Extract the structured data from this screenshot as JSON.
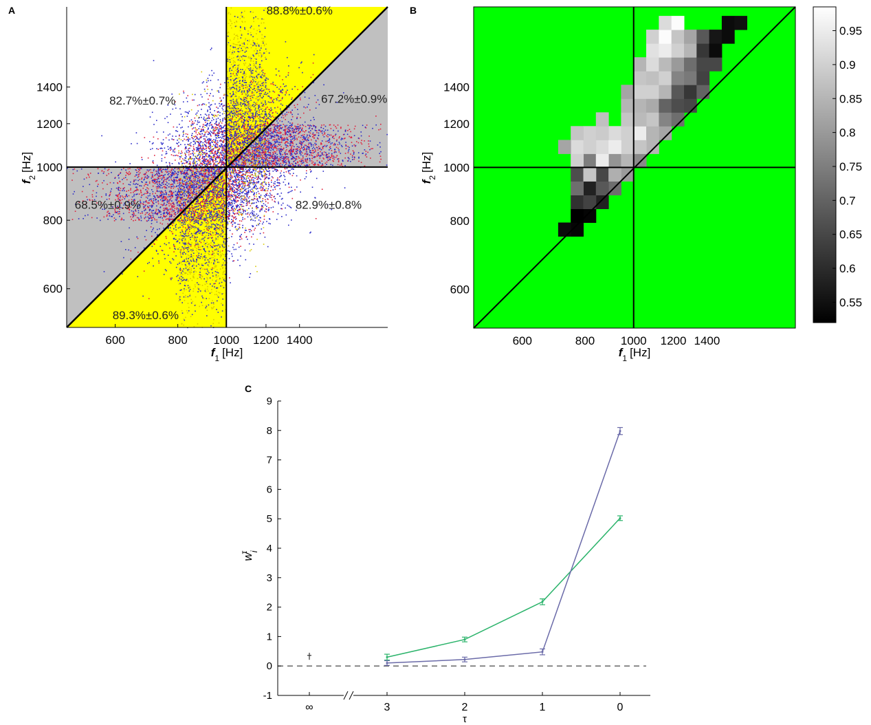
{
  "chart_data": [
    {
      "panel_label": "A",
      "type": "scatter",
      "xlabel": "[Hz]",
      "xlabel_var": "f",
      "xlabel_sub": "1",
      "ylabel": "[Hz]",
      "ylabel_var": "f",
      "ylabel_sub": "2",
      "scale": "log",
      "xlim": [
        480,
        2100
      ],
      "ylim": [
        510,
        1960
      ],
      "xticks": [
        600,
        800,
        1000,
        1200,
        1400
      ],
      "yticks": [
        600,
        800,
        1000,
        1200,
        1400
      ],
      "region_colors": {
        "yellow": "#ffff00",
        "gray": "#c0c0c0"
      },
      "series_colors": [
        "#2828c8",
        "#e0203c",
        "#d8c800"
      ],
      "clusters": [
        {
          "color": "#2828c8",
          "count": 3200,
          "cx": 1000,
          "cy": 1000,
          "sx": 0.17,
          "sy": 0.17,
          "rho": 0.35
        },
        {
          "color": "#e0203c",
          "count": 1400,
          "cx": 1000,
          "cy": 1000,
          "sx": 0.16,
          "sy": 0.16,
          "rho": 0.5
        },
        {
          "color": "#d8c800",
          "count": 900,
          "x_range": [
            1000,
            1200
          ],
          "cy": 1270,
          "sy": 0.22
        },
        {
          "color": "#d8c800",
          "count": 900,
          "x_range": [
            800,
            1000
          ],
          "cy": 790,
          "sy": 0.2
        },
        {
          "color": "#2828c8",
          "count": 500,
          "x_range": [
            1000,
            1200
          ],
          "cy": 1280,
          "sy": 0.2
        },
        {
          "color": "#2828c8",
          "count": 500,
          "x_range": [
            800,
            1000
          ],
          "cy": 780,
          "sy": 0.2
        },
        {
          "color": "#e0203c",
          "count": 700,
          "y_range": [
            1000,
            1200
          ],
          "cx": 1330,
          "sx": 0.2
        },
        {
          "color": "#e0203c",
          "count": 700,
          "y_range": [
            800,
            1000
          ],
          "cx": 760,
          "sx": 0.2
        },
        {
          "color": "#2828c8",
          "count": 500,
          "y_range": [
            1000,
            1200
          ],
          "cx": 1330,
          "sx": 0.2
        },
        {
          "color": "#2828c8",
          "count": 500,
          "y_range": [
            800,
            1000
          ],
          "cx": 760,
          "sx": 0.2
        }
      ],
      "annotations": [
        {
          "text": "88.8%±0.6%",
          "x": 1400,
          "y": 1900
        },
        {
          "text": "82.7%±0.7%",
          "x": 680,
          "y": 1300
        },
        {
          "text": "67.2%±0.9%",
          "x": 1800,
          "y": 1310
        },
        {
          "text": "68.5%±0.9%",
          "x": 580,
          "y": 840
        },
        {
          "text": "82.9%±0.8%",
          "x": 1600,
          "y": 840
        },
        {
          "text": "89.3%±0.6%",
          "x": 690,
          "y": 528
        }
      ]
    },
    {
      "panel_label": "B",
      "type": "heatmap",
      "xlabel": "[Hz]",
      "xlabel_var": "f",
      "xlabel_sub": "1",
      "ylabel": "[Hz]",
      "ylabel_var": "f",
      "ylabel_sub": "2",
      "scale": "log",
      "xlim": [
        480,
        2100
      ],
      "ylim": [
        510,
        1960
      ],
      "xticks": [
        600,
        800,
        1000,
        1200,
        1400
      ],
      "yticks": [
        600,
        800,
        1000,
        1200,
        1400
      ],
      "background": "#00ff00",
      "bin_log2_width": 0.0833,
      "bin_origin": 1000,
      "cells": [
        [
          -4,
          -1,
          0.53
        ],
        [
          -4,
          -2,
          0.54
        ],
        [
          -3,
          -1,
          0.53
        ],
        [
          -3,
          -2,
          0.52
        ],
        [
          -3,
          -3,
          0.61
        ],
        [
          -2,
          -1,
          0.58
        ],
        [
          -2,
          -2,
          0.64
        ],
        [
          -2,
          -3,
          0.58
        ],
        [
          -2,
          -4,
          0.72
        ],
        [
          -2,
          -5,
          0.66
        ],
        [
          -1,
          -1,
          0.72
        ],
        [
          -1,
          -2,
          0.68
        ],
        [
          -1,
          -3,
          0.65
        ],
        [
          -1,
          -4,
          0.88
        ],
        [
          -1,
          -5,
          0.75
        ],
        [
          -1,
          -6,
          0.9
        ],
        [
          -1,
          -7,
          0.92
        ],
        [
          -1,
          -8,
          0.82
        ],
        [
          0,
          -1,
          0.8
        ],
        [
          0,
          -2,
          0.84
        ],
        [
          0,
          -3,
          0.79
        ],
        [
          0,
          -4,
          0.95
        ],
        [
          0,
          -5,
          0.92
        ],
        [
          0,
          -6,
          0.9
        ],
        [
          0,
          -7,
          0.9
        ],
        [
          0,
          -8,
          0.88
        ],
        [
          1,
          -1,
          0.77
        ],
        [
          1,
          -2,
          0.85
        ],
        [
          1,
          -3,
          0.9
        ],
        [
          1,
          -4,
          0.95
        ],
        [
          1,
          -5,
          0.92
        ],
        [
          1,
          -6,
          0.89
        ],
        [
          1,
          -7,
          0.87
        ],
        [
          2,
          -1,
          0.85
        ],
        [
          2,
          -2,
          0.88
        ],
        [
          2,
          -3,
          0.95
        ],
        [
          2,
          -4,
          0.9
        ],
        [
          2,
          -5,
          0.88
        ],
        [
          3,
          -1,
          0.82
        ],
        [
          3,
          -2,
          0.85
        ],
        [
          3,
          -3,
          0.88
        ],
        [
          3,
          -4,
          0.86
        ],
        [
          -2,
          0,
          0.68
        ],
        [
          -2,
          1,
          0.75
        ],
        [
          -2,
          2,
          0.8
        ],
        [
          -2,
          3,
          0.78
        ],
        [
          -1,
          0,
          0.72
        ],
        [
          -1,
          1,
          0.76
        ],
        [
          -1,
          2,
          0.84
        ],
        [
          -1,
          3,
          0.8
        ],
        [
          -1,
          4,
          0.83
        ],
        [
          0,
          0,
          0.79
        ],
        [
          0,
          1,
          0.82
        ],
        [
          0,
          2,
          0.88
        ],
        [
          0,
          3,
          0.86
        ],
        [
          0,
          4,
          0.8
        ],
        [
          0,
          5,
          0.85
        ],
        [
          0,
          6,
          0.82
        ],
        [
          1,
          0,
          0.8
        ],
        [
          1,
          1,
          0.86
        ],
        [
          1,
          2,
          0.92
        ],
        [
          1,
          3,
          0.89
        ],
        [
          1,
          4,
          0.85
        ],
        [
          1,
          5,
          0.9
        ],
        [
          1,
          6,
          0.88
        ],
        [
          1,
          7,
          0.85
        ],
        [
          2,
          0,
          0.78
        ],
        [
          2,
          1,
          0.72
        ],
        [
          2,
          2,
          0.79
        ],
        [
          2,
          3,
          0.83
        ],
        [
          2,
          4,
          0.9
        ],
        [
          2,
          5,
          0.87
        ],
        [
          2,
          6,
          0.92
        ],
        [
          2,
          7,
          0.93
        ],
        [
          2,
          8,
          0.9
        ],
        [
          3,
          0,
          0.75
        ],
        [
          3,
          1,
          0.76
        ],
        [
          3,
          2,
          0.7
        ],
        [
          3,
          3,
          0.85
        ],
        [
          3,
          4,
          0.9
        ],
        [
          3,
          5,
          0.86
        ],
        [
          3,
          6,
          0.95
        ],
        [
          3,
          7,
          0.98
        ],
        [
          3,
          8,
          0.92
        ],
        [
          4,
          0,
          0.72
        ],
        [
          4,
          1,
          0.66
        ],
        [
          4,
          2,
          0.68
        ],
        [
          4,
          3,
          0.76
        ],
        [
          4,
          4,
          0.8
        ],
        [
          4,
          5,
          0.9
        ],
        [
          4,
          6,
          0.88
        ],
        [
          4,
          7,
          0.98
        ],
        [
          5,
          0,
          0.65
        ],
        [
          5,
          1,
          0.62
        ],
        [
          5,
          2,
          0.74
        ],
        [
          5,
          3,
          0.72
        ],
        [
          5,
          4,
          0.85
        ],
        [
          5,
          5,
          0.82
        ],
        [
          6,
          0,
          0.7
        ],
        [
          6,
          1,
          0.64
        ],
        [
          6,
          2,
          0.65
        ],
        [
          6,
          3,
          0.62
        ],
        [
          6,
          4,
          0.68
        ],
        [
          7,
          1,
          0.65
        ],
        [
          7,
          2,
          0.54
        ],
        [
          7,
          3,
          0.56
        ],
        [
          8,
          2,
          0.54
        ],
        [
          8,
          3,
          0.54
        ],
        [
          9,
          2,
          0.55
        ]
      ],
      "colorbar": {
        "min": 0.52,
        "max": 0.985,
        "ticks": [
          0.55,
          0.6,
          0.65,
          0.7,
          0.75,
          0.8,
          0.85,
          0.9,
          0.95
        ]
      }
    },
    {
      "panel_label": "C",
      "type": "line",
      "xlabel": "τ",
      "ylabel_var": "w",
      "ylabel_sub": "i",
      "ylabel_sup": "τ",
      "ylim": [
        -1,
        9
      ],
      "yticks": [
        -1,
        0,
        1,
        2,
        3,
        4,
        5,
        6,
        7,
        8,
        9
      ],
      "categories": [
        "∞",
        "3",
        "2",
        "1",
        "0"
      ],
      "axis_break": "//",
      "baseline": 0,
      "dagger": "†",
      "series": [
        {
          "color": "#2ab36a",
          "x": [
            "3",
            "2",
            "1",
            "0"
          ],
          "values": [
            0.3,
            0.9,
            2.18,
            5.02
          ],
          "errors": [
            0.1,
            0.08,
            0.1,
            0.08
          ]
        },
        {
          "color": "#6a6aa8",
          "x": [
            "3",
            "2",
            "1",
            "0"
          ],
          "values": [
            0.1,
            0.22,
            0.48,
            7.98
          ],
          "errors": [
            0.08,
            0.08,
            0.1,
            0.12
          ]
        }
      ],
      "infinity_point": {
        "value": 0.33,
        "error": 0.12
      }
    }
  ]
}
